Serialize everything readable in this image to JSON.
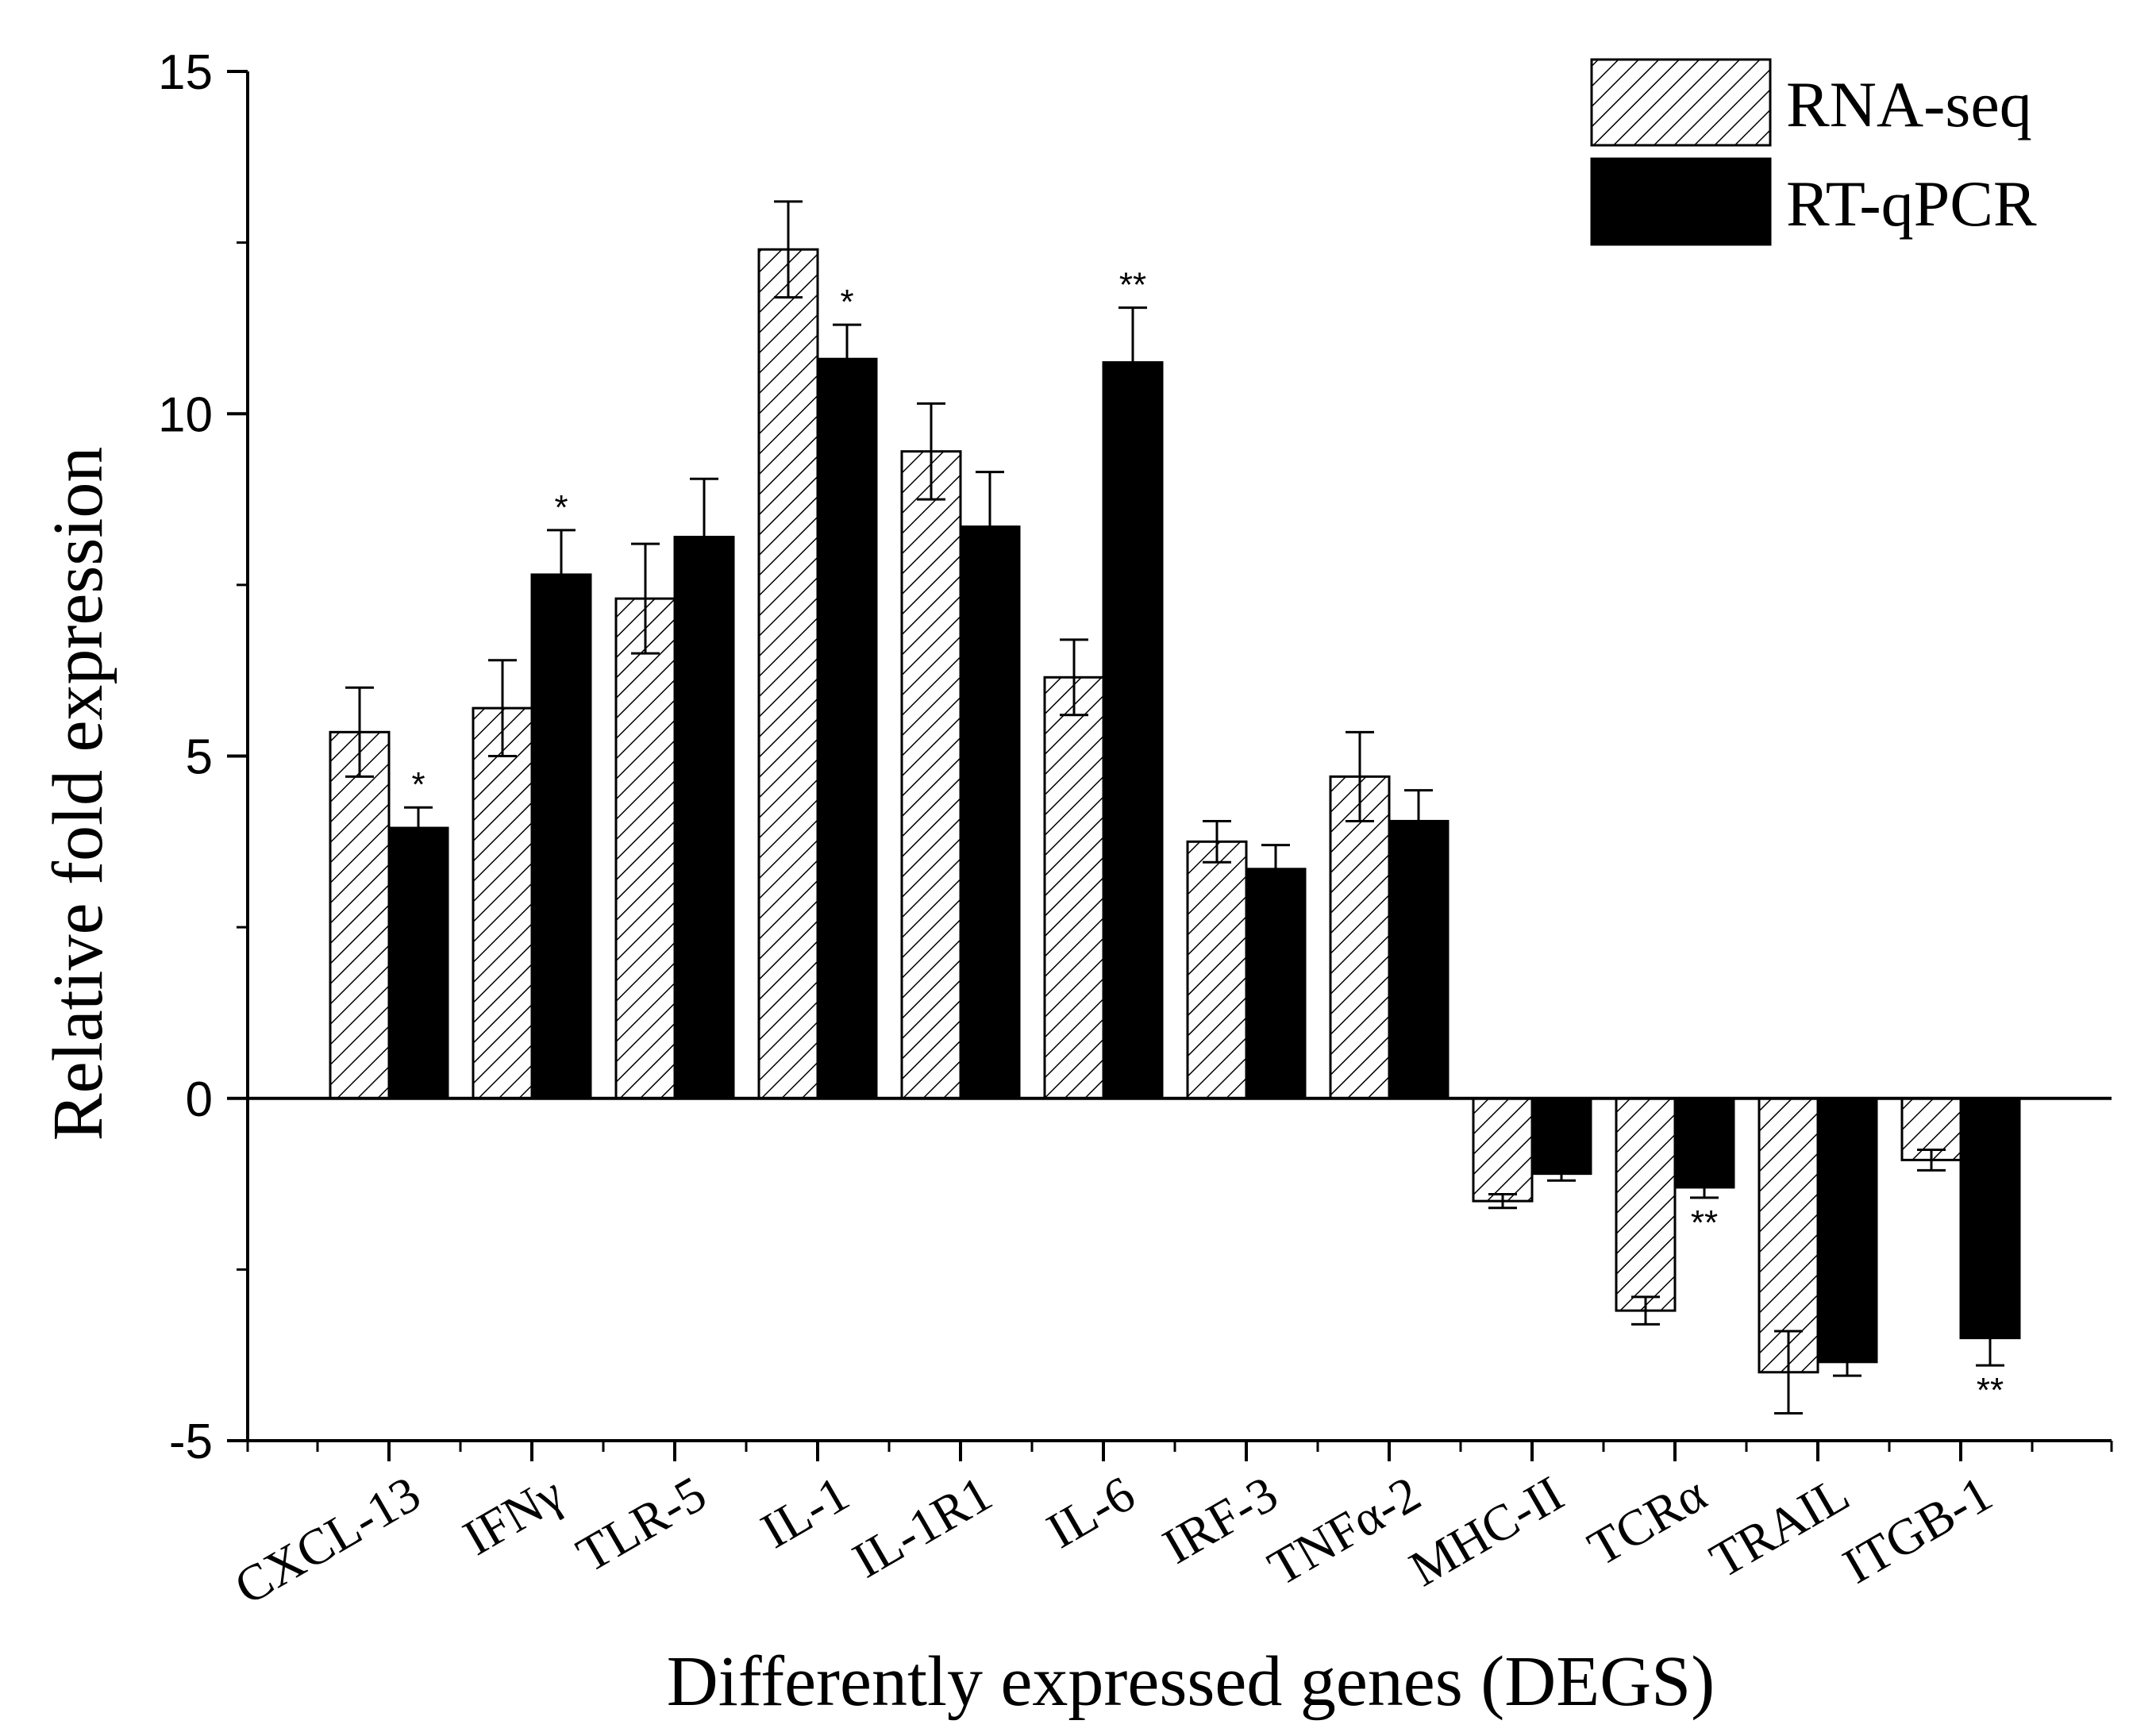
{
  "chart_data": {
    "type": "bar",
    "title": "",
    "xlabel": "Differently expressed genes (DEGS)",
    "ylabel": "Relative fold expression",
    "ylim": [
      -5,
      15
    ],
    "yticks": [
      -5,
      0,
      5,
      10,
      15
    ],
    "ytick_labels": [
      "-5",
      "0",
      "5",
      "10",
      "15"
    ],
    "grid": false,
    "legend_position": "top-right",
    "categories": [
      "CXCL-13",
      "IFNγ",
      "TLR-5",
      "IL-1",
      "IL-1R1",
      "IL-6",
      "IRF-3",
      "TNFα-2",
      "MHC-II",
      "TCRα",
      "TRAIL",
      "ITGB-1"
    ],
    "series": [
      {
        "name": "RNA-seq",
        "style": "hatched",
        "color": "#ffffff",
        "values": [
          5.35,
          5.7,
          7.3,
          12.4,
          9.45,
          6.15,
          3.75,
          4.7,
          -1.5,
          -3.1,
          -4.0,
          -0.9
        ],
        "errors": [
          0.65,
          0.7,
          0.8,
          0.7,
          0.7,
          0.55,
          0.3,
          0.65,
          0.1,
          0.2,
          0.6,
          0.15
        ],
        "significance": [
          "",
          "",
          "",
          "",
          "",
          "",
          "",
          "",
          "",
          "",
          "",
          ""
        ]
      },
      {
        "name": "RT-qPCR",
        "style": "solid",
        "color": "#000000",
        "values": [
          3.95,
          7.65,
          8.2,
          10.8,
          8.35,
          10.75,
          3.35,
          4.05,
          -1.1,
          -1.3,
          -3.85,
          -3.5
        ],
        "errors": [
          0.3,
          0.65,
          0.85,
          0.5,
          0.8,
          0.8,
          0.35,
          0.45,
          0.1,
          0.15,
          0.2,
          0.4
        ],
        "significance": [
          "*",
          "*",
          "",
          "*",
          "",
          "**",
          "",
          "",
          "",
          "**",
          "",
          "**"
        ]
      }
    ]
  }
}
